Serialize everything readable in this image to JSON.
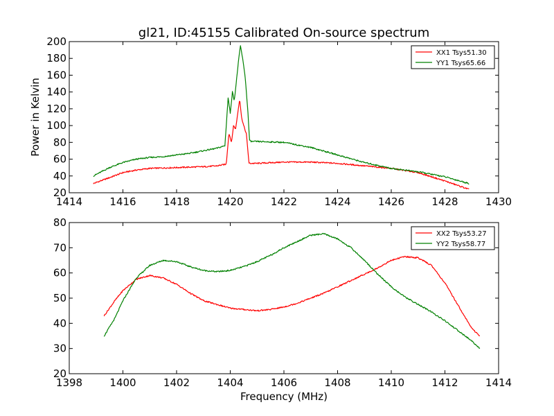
{
  "chart_data": [
    {
      "type": "line",
      "title": "gl21, ID:45155 Calibrated On-source spectrum",
      "xlabel": "",
      "ylabel": "Power in Kelvin",
      "xlim": [
        1414,
        1430
      ],
      "ylim": [
        20,
        200
      ],
      "xticks": [
        "1414",
        "1416",
        "1418",
        "1420",
        "1422",
        "1424",
        "1426",
        "1428",
        "1430"
      ],
      "yticks": [
        "20",
        "40",
        "60",
        "80",
        "100",
        "120",
        "140",
        "160",
        "180",
        "200"
      ],
      "grid": false,
      "legend_position": "top-right",
      "series": [
        {
          "name": "XX1 Tsys51.30",
          "color": "#ff0000",
          "x": [
            1414.9,
            1415.5,
            1416.0,
            1416.5,
            1417.0,
            1417.5,
            1418.0,
            1418.5,
            1419.0,
            1419.5,
            1419.85,
            1419.95,
            1420.05,
            1420.12,
            1420.2,
            1420.28,
            1420.35,
            1420.42,
            1420.5,
            1420.6,
            1420.7,
            1420.8,
            1421.0,
            1422.0,
            1423.0,
            1424.0,
            1425.0,
            1426.0,
            1427.0,
            1428.0,
            1428.9
          ],
          "y": [
            31,
            38,
            44,
            47,
            49,
            49.5,
            50,
            50.5,
            51,
            52,
            54,
            91,
            80,
            100,
            96,
            115,
            132,
            110,
            100,
            90,
            55,
            55,
            55,
            56.5,
            56.5,
            55,
            52,
            49,
            44,
            34,
            24
          ]
        },
        {
          "name": "YY1 Tsys65.66",
          "color": "#008000",
          "x": [
            1414.9,
            1415.5,
            1416.0,
            1416.5,
            1417.0,
            1417.5,
            1418.0,
            1418.5,
            1419.0,
            1419.5,
            1419.8,
            1419.92,
            1420.0,
            1420.08,
            1420.15,
            1420.22,
            1420.3,
            1420.38,
            1420.45,
            1420.55,
            1420.65,
            1420.72,
            1420.8,
            1421.0,
            1422.0,
            1423.0,
            1424.0,
            1425.0,
            1426.0,
            1427.0,
            1428.0,
            1428.9
          ],
          "y": [
            40,
            50,
            56,
            60,
            62,
            63,
            65,
            67,
            70,
            73,
            76,
            133,
            115,
            140,
            130,
            150,
            175,
            195,
            182,
            160,
            120,
            82,
            81,
            81,
            80,
            74,
            65,
            56,
            49,
            45,
            39,
            31
          ]
        }
      ]
    },
    {
      "type": "line",
      "title": "",
      "xlabel": "Frequency (MHz)",
      "ylabel": "",
      "xlim": [
        1398,
        1414
      ],
      "ylim": [
        20,
        80
      ],
      "xticks": [
        "1398",
        "1400",
        "1402",
        "1404",
        "1406",
        "1408",
        "1410",
        "1412",
        "1414"
      ],
      "yticks": [
        "20",
        "30",
        "40",
        "50",
        "60",
        "70",
        "80"
      ],
      "grid": false,
      "legend_position": "top-right",
      "series": [
        {
          "name": "XX2 Tsys53.27",
          "color": "#ff0000",
          "x": [
            1399.3,
            1399.7,
            1400.0,
            1400.5,
            1401.0,
            1401.5,
            1402.0,
            1402.5,
            1403.0,
            1403.5,
            1404.0,
            1404.5,
            1405.0,
            1405.5,
            1406.0,
            1406.5,
            1407.0,
            1407.5,
            1408.0,
            1408.5,
            1409.0,
            1409.5,
            1410.0,
            1410.5,
            1411.0,
            1411.5,
            1412.0,
            1412.5,
            1413.0,
            1413.3
          ],
          "y": [
            43,
            49,
            53,
            57.5,
            59,
            58,
            55.5,
            52,
            49,
            47.5,
            46,
            45.5,
            45,
            45.5,
            46.5,
            48,
            50,
            52,
            54.5,
            57,
            59.5,
            62,
            65,
            66.5,
            66,
            63,
            56,
            47,
            38,
            35
          ]
        },
        {
          "name": "YY2 Tsys58.77",
          "color": "#008000",
          "x": [
            1399.3,
            1399.7,
            1400.0,
            1400.5,
            1401.0,
            1401.5,
            1402.0,
            1402.5,
            1403.0,
            1403.5,
            1404.0,
            1404.5,
            1405.0,
            1405.5,
            1406.0,
            1406.5,
            1407.0,
            1407.5,
            1408.0,
            1408.5,
            1409.0,
            1409.5,
            1410.0,
            1410.5,
            1411.0,
            1411.5,
            1412.0,
            1412.5,
            1413.0,
            1413.3
          ],
          "y": [
            35,
            42,
            49,
            58,
            63,
            65,
            64.5,
            62.5,
            61,
            60.5,
            61,
            62.5,
            64.5,
            67,
            70,
            72.5,
            75,
            75.5,
            73.5,
            70,
            65,
            59.5,
            54.5,
            50.5,
            47.5,
            44.5,
            41,
            37,
            33,
            30
          ]
        }
      ]
    }
  ]
}
